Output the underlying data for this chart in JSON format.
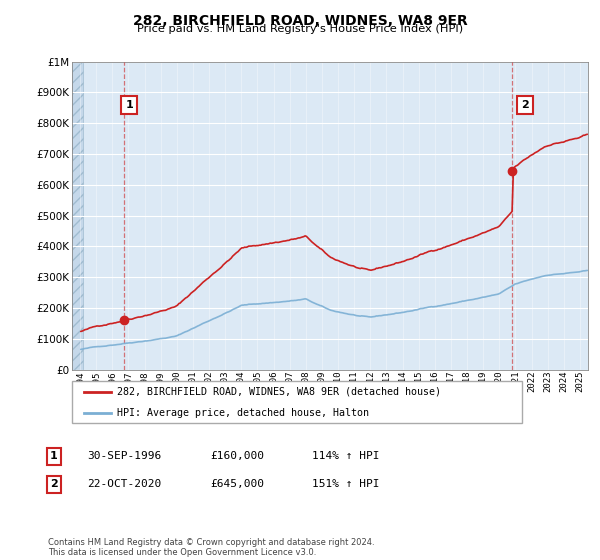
{
  "title": "282, BIRCHFIELD ROAD, WIDNES, WA8 9ER",
  "subtitle": "Price paid vs. HM Land Registry's House Price Index (HPI)",
  "legend_line1": "282, BIRCHFIELD ROAD, WIDNES, WA8 9ER (detached house)",
  "legend_line2": "HPI: Average price, detached house, Halton",
  "sale1_label": "1",
  "sale1_date": "30-SEP-1996",
  "sale1_price": "£160,000",
  "sale1_hpi": "114% ↑ HPI",
  "sale2_label": "2",
  "sale2_date": "22-OCT-2020",
  "sale2_price": "£645,000",
  "sale2_hpi": "151% ↑ HPI",
  "footer": "Contains HM Land Registry data © Crown copyright and database right 2024.\nThis data is licensed under the Open Government Licence v3.0.",
  "hpi_color": "#7bafd4",
  "price_color": "#cc2222",
  "marker_color": "#cc2222",
  "sale1_year": 1996.75,
  "sale2_year": 2020.8,
  "sale1_price_val": 160000,
  "sale2_price_val": 645000,
  "ylim_max": 1000000,
  "xlim_min": 1993.5,
  "xlim_max": 2025.5,
  "background_color": "#ffffff",
  "plot_bg_color": "#dce9f5",
  "grid_color": "#ffffff",
  "hatch_color": "#b0c8e0"
}
